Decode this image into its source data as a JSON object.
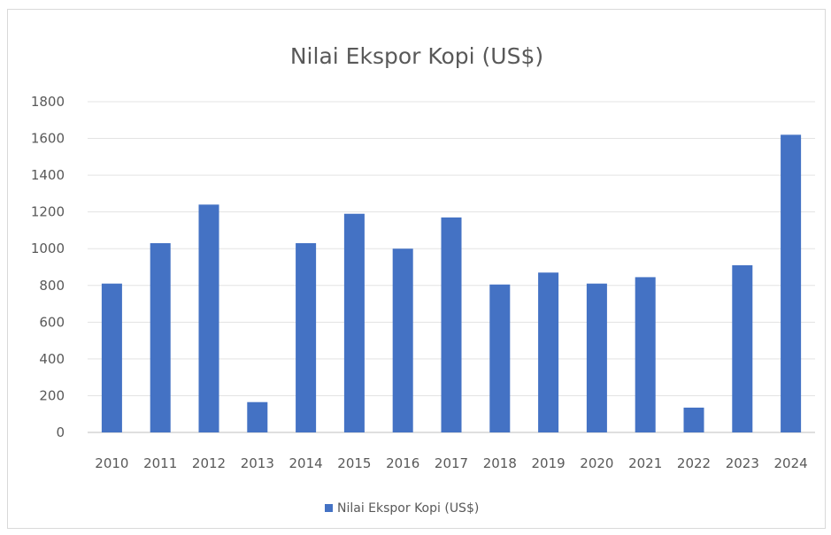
{
  "chart_data": {
    "type": "bar",
    "title": "Nilai Ekspor Kopi  (US$)",
    "categories": [
      "2010",
      "2011",
      "2012",
      "2013",
      "2014",
      "2015",
      "2016",
      "2017",
      "2018",
      "2019",
      "2020",
      "2021",
      "2022",
      "2023",
      "2024"
    ],
    "series": [
      {
        "name": "Nilai Ekspor Kopi  (US$)",
        "color": "#4472c4",
        "values": [
          810,
          1030,
          1240,
          165,
          1030,
          1190,
          1000,
          1170,
          805,
          870,
          810,
          845,
          135,
          910,
          1620
        ]
      }
    ],
    "ylim": [
      0,
      1800
    ],
    "yticks": [
      0,
      200,
      400,
      600,
      800,
      1000,
      1200,
      1400,
      1600,
      1800
    ],
    "grid": true,
    "legend_position": "bottom"
  }
}
